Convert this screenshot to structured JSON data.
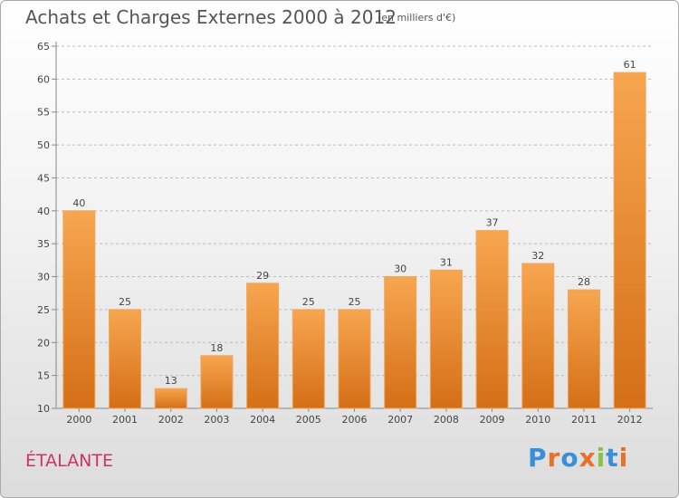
{
  "header": {
    "title": "Achats et Charges Externes 2000 à 2012",
    "subtitle": "(en milliers d'€)"
  },
  "footer": {
    "commune": "ÉTALANTE",
    "logo": {
      "text": "Proxiti",
      "letters": [
        {
          "char": "P",
          "color": "#3a8fd6"
        },
        {
          "char": "r",
          "color": "#e8702a"
        },
        {
          "char": "o",
          "color": "#3a8fd6"
        },
        {
          "char": "x",
          "color": "#e8702a"
        },
        {
          "char": "i",
          "color": "#8ac04a"
        },
        {
          "char": "t",
          "color": "#3a8fd6"
        },
        {
          "char": "i",
          "color": "#e8702a"
        }
      ]
    }
  },
  "colors": {
    "bar_top": "#f7a650",
    "bar_bottom": "#d46f16",
    "grid": "#bbbbbb",
    "axis": "#888888",
    "commune": "#cc3366"
  },
  "chart_data": {
    "type": "bar",
    "title": "Achats et Charges Externes 2000 à 2012",
    "subtitle": "(en milliers d'€)",
    "categories": [
      "2000",
      "2001",
      "2002",
      "2003",
      "2004",
      "2005",
      "2006",
      "2007",
      "2008",
      "2009",
      "2010",
      "2011",
      "2012"
    ],
    "values": [
      40,
      25,
      13,
      18,
      29,
      25,
      25,
      30,
      31,
      37,
      32,
      28,
      61
    ],
    "xlabel": "",
    "ylabel": "",
    "ylim": [
      10,
      65
    ],
    "yticks": [
      10,
      15,
      20,
      25,
      30,
      35,
      40,
      45,
      50,
      55,
      60,
      65
    ],
    "grid": "horizontal-dashed",
    "data_labels": true
  }
}
